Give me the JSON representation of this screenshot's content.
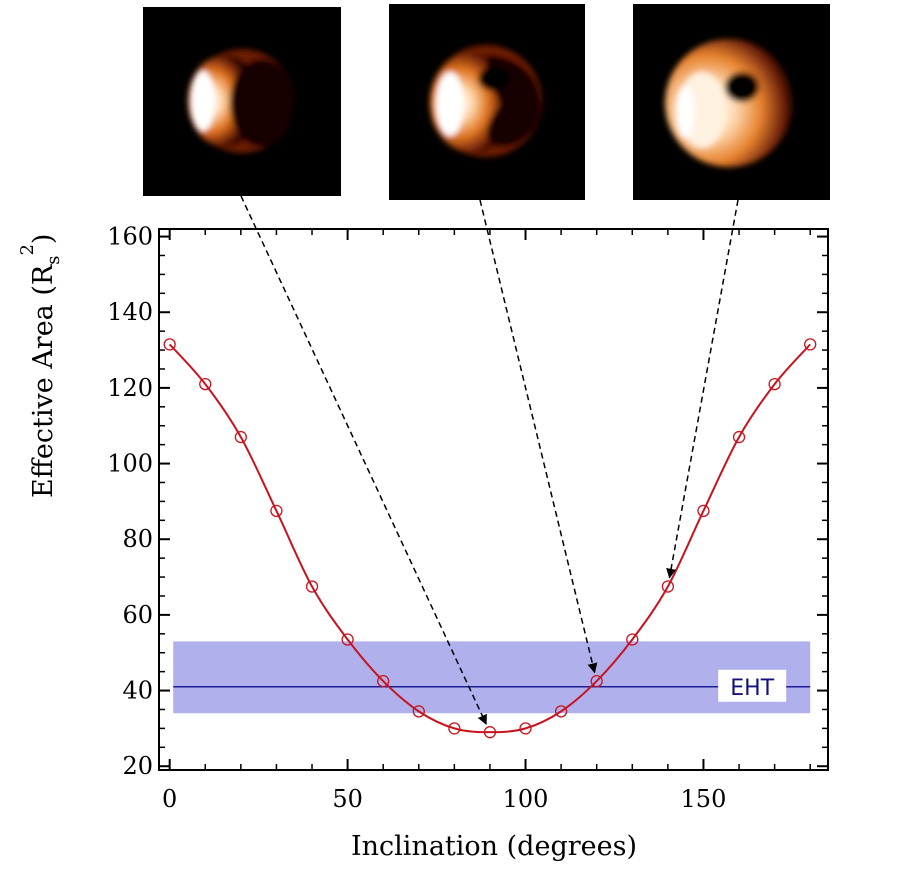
{
  "chart_data": {
    "type": "line",
    "xlabel": "Inclination (degrees)",
    "ylabel_main": "Effective Area (R",
    "ylabel_sub": "s",
    "ylabel_sup": "2",
    "ylabel_close": ")",
    "xlim": [
      -3,
      185
    ],
    "ylim": [
      19,
      162
    ],
    "xticks": [
      0,
      50,
      100,
      150
    ],
    "yticks": [
      20,
      40,
      60,
      80,
      100,
      120,
      140,
      160
    ],
    "grid": false,
    "series": [
      {
        "x": [
          0,
          10,
          20,
          30,
          40,
          50,
          60,
          70,
          80,
          90,
          100,
          110,
          120,
          130,
          140,
          150,
          160,
          170,
          180
        ],
        "values": [
          131.5,
          121,
          107,
          87.5,
          67.5,
          53.5,
          42.5,
          34.5,
          30,
          29,
          30,
          34.5,
          42.5,
          53.5,
          67.5,
          87.5,
          107,
          121,
          131.5
        ],
        "color": "#c8141e"
      }
    ],
    "band": {
      "label": "EHT",
      "center": 41,
      "low": 34,
      "high": 53,
      "x_range": [
        1,
        180
      ],
      "fill": "#b0b0ec",
      "line": "#1e1e96"
    },
    "insets": [
      {
        "name": "shadow-image-low",
        "points_to_x": 90
      },
      {
        "name": "shadow-image-mid",
        "points_to_x": 120
      },
      {
        "name": "shadow-image-high",
        "points_to_x": 140
      }
    ]
  }
}
